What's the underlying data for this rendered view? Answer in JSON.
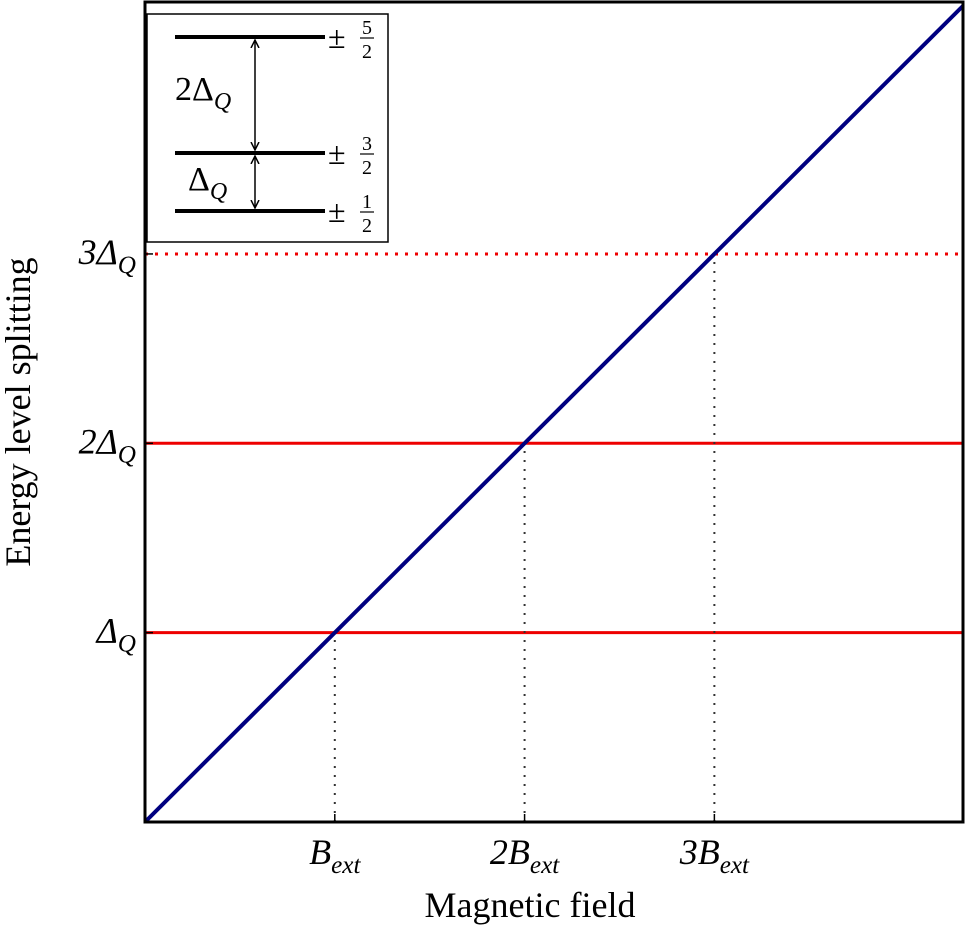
{
  "chart_data": {
    "type": "line",
    "x_label": "Magnetic field",
    "y_label": "Energy level splitting",
    "xlim": [
      0,
      4.31
    ],
    "ylim": [
      0,
      4.32
    ],
    "xticks": [
      {
        "value": 1,
        "label": "B",
        "sub": "ext"
      },
      {
        "value": 2,
        "label": "2B",
        "sub": "ext"
      },
      {
        "value": 3,
        "label": "3B",
        "sub": "ext"
      }
    ],
    "yticks": [
      {
        "value": 1,
        "label": "Δ",
        "sub": "Q"
      },
      {
        "value": 2,
        "label": "2Δ",
        "sub": "Q"
      },
      {
        "value": 3,
        "label": "3Δ",
        "sub": "Q"
      }
    ],
    "x": [
      0,
      4.31
    ],
    "series": [
      {
        "color": "#000080",
        "values": [
          0,
          4.31
        ]
      }
    ],
    "hlines": [
      {
        "y": 1,
        "color": "#ee0000",
        "style": "solid"
      },
      {
        "y": 2,
        "color": "#ee0000",
        "style": "solid"
      },
      {
        "y": 3,
        "color": "#ee0000",
        "style": "dotted"
      }
    ],
    "vlines": [
      {
        "x": 1,
        "ymax": 1
      },
      {
        "x": 2,
        "ymax": 2
      },
      {
        "x": 3,
        "ymax": 3
      }
    ],
    "inset": {
      "levels": [
        {
          "sign": "±",
          "num": "5",
          "den": "2"
        },
        {
          "sign": "±",
          "num": "3",
          "den": "2"
        },
        {
          "sign": "±",
          "num": "1",
          "den": "2"
        }
      ],
      "gaps": [
        {
          "label": "2Δ",
          "sub": "Q"
        },
        {
          "label": "Δ",
          "sub": "Q"
        }
      ]
    }
  }
}
